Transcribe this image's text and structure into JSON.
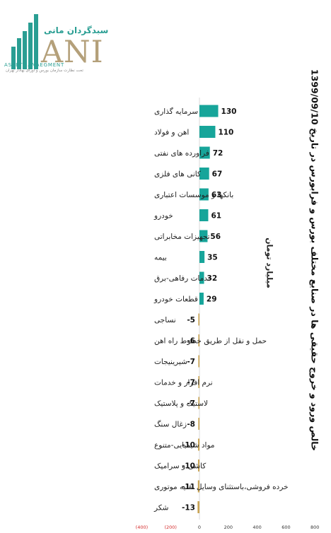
{
  "logo": {
    "brand_fa": "سبدگردان مانی",
    "wordmark": "ANI",
    "subtitle": "ASSETMANAEGMENT",
    "tagline": "تحت نظارت سازمان بورس و اوراق بهادار تهران"
  },
  "colors": {
    "positive": "#17a59a",
    "negative": "#c9a455"
  },
  "chart_data": {
    "type": "bar",
    "orientation": "horizontal",
    "title": "خالص ورود و خروج حقیقی ها در صنایع مختلف بورس و فرابورس در تاریخ 1399/09/10",
    "unit_label": "میلیارد تومان",
    "categories": [
      "سرمایه گذاری",
      "اهن و فولاد",
      "فراورده های نفتی",
      "کانی های فلزی",
      "بانکها و موسسات اعتباری",
      "خودرو",
      "تجهیزات مخابراتی",
      "بیمه",
      "خدمات رفاهی-برق",
      "قطعات خودرو",
      "نساجی",
      "حمل و نقل از طریق خطوط راه اهن",
      "شیرینیجات",
      "نرم افزار و خدمات",
      "لاستیک و پلاستیک",
      "زغال سنگ",
      "مواد شیمیایی-متنوع",
      "کاشی و سرامیک",
      "خرده فروشی،باستثنای وسایل نقلیه موتوری",
      "شکر"
    ],
    "values": [
      130,
      110,
      72,
      67,
      63,
      61,
      56,
      35,
      32,
      29,
      -5,
      -6,
      -7,
      -7,
      -7,
      -8,
      -10,
      -10,
      -11,
      -13
    ],
    "xlim": [
      -400,
      800
    ],
    "x_ticks": [
      -400,
      -200,
      0,
      200,
      400,
      600,
      800
    ],
    "x_tick_labels": [
      "(400)",
      "(200)",
      "0",
      "200",
      "400",
      "600",
      "800"
    ],
    "grid": false,
    "legend": "none"
  }
}
